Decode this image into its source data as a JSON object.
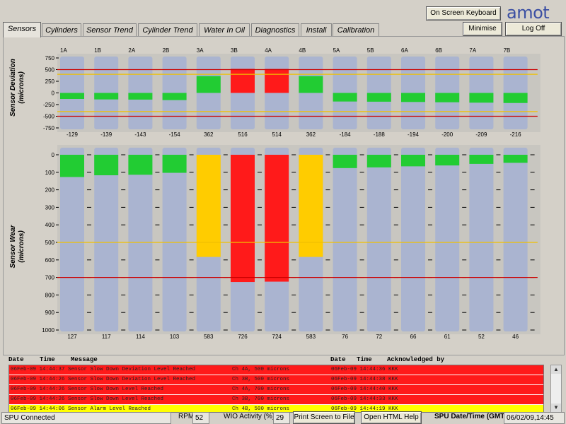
{
  "header": {
    "on_screen_keyboard": "On Screen Keyboard",
    "logo": "amot",
    "minimise": "Minimise",
    "log_off": "Log Off"
  },
  "tabs": [
    "Sensors",
    "Cylinders",
    "Sensor Trend",
    "Cylinder Trend",
    "Water In Oil",
    "Diagnostics",
    "Install",
    "Calibration"
  ],
  "active_tab": "Sensors",
  "colors": {
    "bar_bg": "#aab4d0",
    "green": "#22cc33",
    "red": "#ff1a1a",
    "yellow": "#ffcc00",
    "limit_red": "#cc0000",
    "limit_yellow": "#f0c000"
  },
  "deviation_chart": {
    "ylabel": "Sensor Deviation\n(microns)",
    "ylim": [
      -750,
      750
    ],
    "ticks": [
      750,
      500,
      250,
      0,
      -250,
      -500,
      -750
    ],
    "alarm_limits": [
      500,
      -500
    ],
    "warning_limits": [
      400,
      -400
    ],
    "sensors": [
      "1A",
      "1B",
      "2A",
      "2B",
      "3A",
      "3B",
      "4A",
      "4B",
      "5A",
      "5B",
      "6A",
      "6B",
      "7A",
      "7B"
    ],
    "readouts": [
      "-129",
      "-139",
      "-143",
      "-154",
      "362",
      "516",
      "514",
      "362",
      "-184",
      "-188",
      "-194",
      "-200",
      "-209",
      "-216"
    ]
  },
  "wear_chart": {
    "ylabel": "Sensor Wear\n(microns)",
    "ylim": [
      0,
      1000
    ],
    "ticks": [
      0,
      100,
      200,
      300,
      400,
      500,
      600,
      700,
      800,
      900,
      1000
    ],
    "alarm_limit": 700,
    "warning_limit": 500,
    "readouts": [
      "127",
      "117",
      "114",
      "103",
      "583",
      "726",
      "724",
      "583",
      "76",
      "72",
      "66",
      "61",
      "52",
      "46"
    ]
  },
  "chart_data": [
    {
      "type": "bar",
      "categories": [
        "1A",
        "1B",
        "2A",
        "2B",
        "3A",
        "3B",
        "4A",
        "4B",
        "5A",
        "5B",
        "6A",
        "6B",
        "7A",
        "7B"
      ],
      "values": [
        -129,
        -139,
        -143,
        -154,
        362,
        516,
        514,
        362,
        -184,
        -188,
        -194,
        -200,
        -209,
        -216
      ],
      "ylabel": "Sensor Deviation (microns)",
      "ylim": [
        -750,
        750
      ]
    },
    {
      "type": "bar",
      "categories": [
        "1A",
        "1B",
        "2A",
        "2B",
        "3A",
        "3B",
        "4A",
        "4B",
        "5A",
        "5B",
        "6A",
        "6B",
        "7A",
        "7B"
      ],
      "values": [
        127,
        117,
        114,
        103,
        583,
        726,
        724,
        583,
        76,
        72,
        66,
        61,
        52,
        46
      ],
      "ylabel": "Sensor Wear (microns)",
      "ylim": [
        0,
        1000
      ]
    }
  ],
  "alarm_log": {
    "headers": {
      "date": "Date",
      "time": "Time",
      "message": "Message",
      "date2": "Date",
      "time2": "Time",
      "ack": "Acknowledged by"
    },
    "rows": [
      {
        "text": "06Feb-09 14:44:37 Sensor Slow Down Deviation Level Reached",
        "detail": "Ch 4A, 500 microns",
        "ack": "06Feb-09 14:44:36 KKK",
        "level": "red"
      },
      {
        "text": "06Feb-09 14:44:26 Sensor Slow Down Deviation Level Reached",
        "detail": "Ch 3B, 500 microns",
        "ack": "06Feb-09 14:44:38 KKK",
        "level": "red"
      },
      {
        "text": "06Feb-09 14:44:26 Sensor Slow Down Level Reached",
        "detail": "Ch 4A, 700 microns",
        "ack": "06Feb-09 14:44:40 KKK",
        "level": "red"
      },
      {
        "text": "06Feb-09 14:44:26 Sensor Slow Down Level Reached",
        "detail": "Ch 3B, 700 microns",
        "ack": "06Feb-09 14:44:33 KKK",
        "level": "red"
      },
      {
        "text": "06Feb-09 14:44:06 Sensor Alarm Level Reached",
        "detail": "Ch 4B, 500 microns",
        "ack": "06Feb-09 14:44:19 KKK",
        "level": "yellow"
      }
    ]
  },
  "status_bar": {
    "connection": "SPU Connected",
    "rpm_label": "RPM",
    "rpm_value": "52",
    "wio_label": "WIO Activity (%)",
    "wio_value": "29",
    "print_button": "Print Screen to File",
    "help_button": "Open HTML Help",
    "datetime_label": "SPU Date/Time (GMT)",
    "datetime_value": "06/02/09,14:45"
  }
}
